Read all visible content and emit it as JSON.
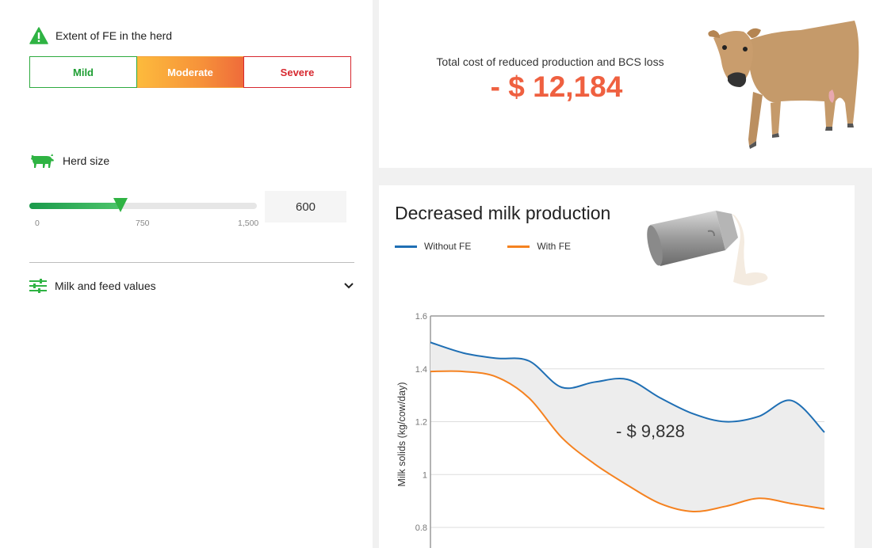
{
  "fe": {
    "title": "Extent of FE in the herd",
    "options": [
      "Mild",
      "Moderate",
      "Severe"
    ],
    "selected": "Moderate"
  },
  "herd": {
    "title": "Herd size",
    "value": "600",
    "slider_value": 600,
    "slider_min": 0,
    "slider_max": 1500,
    "ticks": [
      "0",
      "750",
      "1,500"
    ]
  },
  "milk_feed": {
    "label": "Milk and feed values"
  },
  "summary": {
    "label": "Total cost of reduced production and BCS loss",
    "value": "- $ 12,184"
  },
  "chart_card": {
    "title": "Decreased milk production",
    "callout": "- $ 9,828"
  },
  "colors": {
    "accent_green": "#2fb343",
    "cost_red": "#ef6040",
    "without_fe": "#1f6fb4",
    "with_fe": "#f58220"
  },
  "chart_data": {
    "type": "line",
    "ylabel": "Milk solids (kg/cow/day)",
    "ylim": [
      0.8,
      1.6
    ],
    "yticks": [
      "1.6",
      "1.4",
      "1.2",
      "1",
      "0.8"
    ],
    "grid": true,
    "legend": "top-left",
    "x": [
      0,
      1,
      2,
      3,
      4,
      5,
      6,
      7,
      8,
      9,
      10,
      11,
      12
    ],
    "series": [
      {
        "name": "Without FE",
        "color": "#1f6fb4",
        "values": [
          1.5,
          1.46,
          1.44,
          1.43,
          1.33,
          1.35,
          1.36,
          1.29,
          1.23,
          1.2,
          1.22,
          1.28,
          1.16
        ]
      },
      {
        "name": "With FE",
        "color": "#f58220",
        "values": [
          1.39,
          1.39,
          1.37,
          1.29,
          1.14,
          1.04,
          0.96,
          0.89,
          0.86,
          0.88,
          0.91,
          0.89,
          0.87
        ]
      }
    ]
  }
}
